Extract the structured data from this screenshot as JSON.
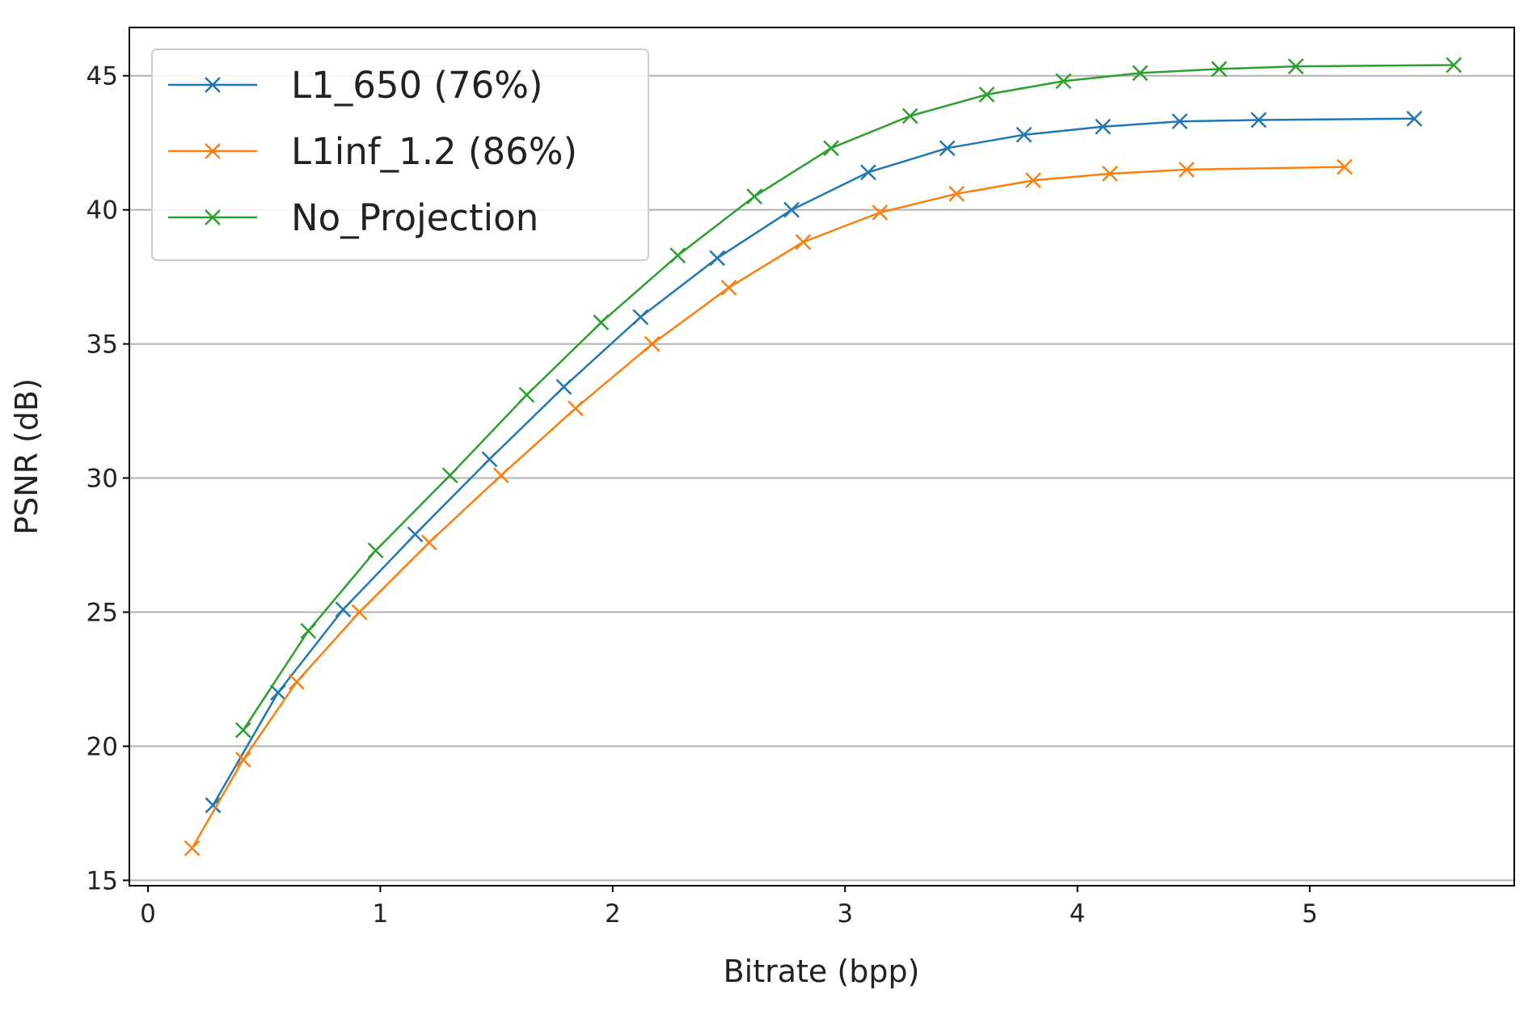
{
  "chart_data": {
    "type": "line",
    "title": "",
    "xlabel": "Bitrate (bpp)",
    "ylabel": "PSNR (dB)",
    "xlim": [
      -0.08,
      5.88
    ],
    "ylim": [
      14.8,
      46.8
    ],
    "xticks": [
      0,
      1,
      2,
      3,
      4,
      5
    ],
    "yticks": [
      15,
      20,
      25,
      30,
      35,
      40,
      45
    ],
    "xtick_labels": [
      "0",
      "1",
      "2",
      "3",
      "4",
      "5"
    ],
    "ytick_labels": [
      "15",
      "20",
      "25",
      "30",
      "35",
      "40",
      "45"
    ],
    "grid": "horizontal",
    "legend_position": "top-left",
    "marker": "x",
    "series": [
      {
        "name": "L1_650 (76%)",
        "color": "#1f77b4",
        "x": [
          0.28,
          0.56,
          0.84,
          1.15,
          1.47,
          1.79,
          2.12,
          2.45,
          2.77,
          3.1,
          3.44,
          3.77,
          4.11,
          4.44,
          4.78,
          5.45
        ],
        "y": [
          17.8,
          22.0,
          25.1,
          27.9,
          30.7,
          33.4,
          36.0,
          38.2,
          40.0,
          41.4,
          42.3,
          42.8,
          43.1,
          43.3,
          43.35,
          43.4
        ]
      },
      {
        "name": "L1inf_1.2 (86%)",
        "color": "#ff7f0e",
        "x": [
          0.19,
          0.41,
          0.64,
          0.91,
          1.21,
          1.52,
          1.84,
          2.17,
          2.5,
          2.82,
          3.15,
          3.48,
          3.81,
          4.14,
          4.47,
          5.15
        ],
        "y": [
          16.2,
          19.5,
          22.4,
          25.0,
          27.6,
          30.1,
          32.6,
          35.0,
          37.1,
          38.8,
          39.9,
          40.6,
          41.1,
          41.35,
          41.5,
          41.6
        ]
      },
      {
        "name": "No_Projection",
        "color": "#2ca02c",
        "x": [
          0.41,
          0.69,
          0.98,
          1.3,
          1.63,
          1.95,
          2.28,
          2.61,
          2.94,
          3.28,
          3.61,
          3.94,
          4.27,
          4.61,
          4.94,
          5.62
        ],
        "y": [
          20.6,
          24.3,
          27.3,
          30.1,
          33.1,
          35.8,
          38.3,
          40.5,
          42.3,
          43.5,
          44.3,
          44.8,
          45.1,
          45.25,
          45.35,
          45.4
        ]
      }
    ]
  }
}
